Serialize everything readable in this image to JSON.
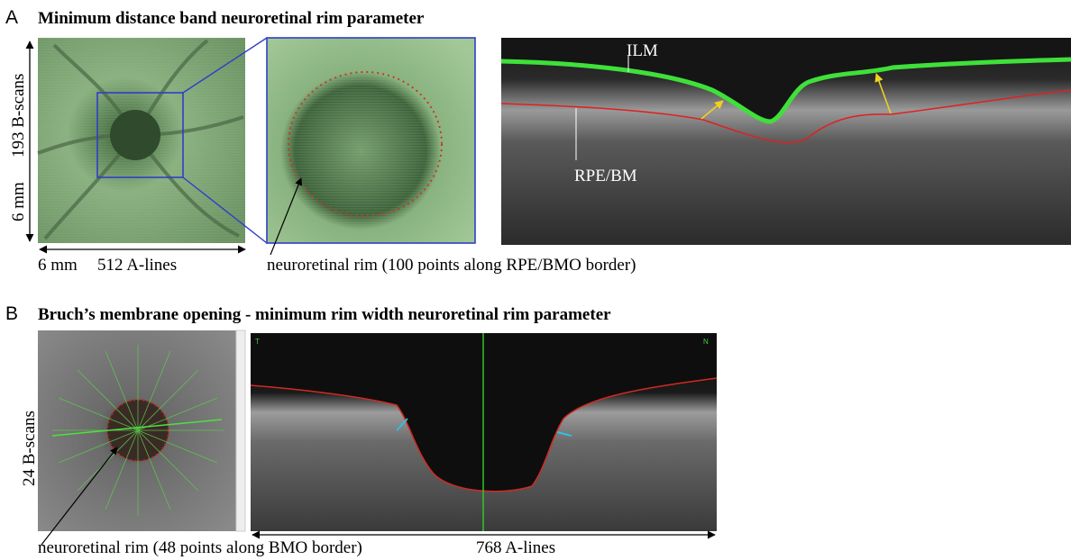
{
  "panel_a": {
    "letter": "A",
    "title": "Minimum distance band neuroretinal rim parameter",
    "vertical_label": "193 B-scans",
    "vertical_size": "6 mm",
    "horizontal_size": "6 mm",
    "horizontal_label": "512 A-lines",
    "rim_note": "neuroretinal rim (100 points along RPE/BMO border)",
    "ilm_label": "ILM",
    "rpe_label": "RPE/BM"
  },
  "panel_b": {
    "letter": "B",
    "title": "Bruch’s membrane opening - minimum rim width neuroretinal rim parameter",
    "vertical_label": "24 B-scans",
    "rim_note": "neuroretinal rim (48 points along BMO border)",
    "horizontal_label": "768 A-lines",
    "scan_left": "T",
    "scan_right": "N"
  }
}
